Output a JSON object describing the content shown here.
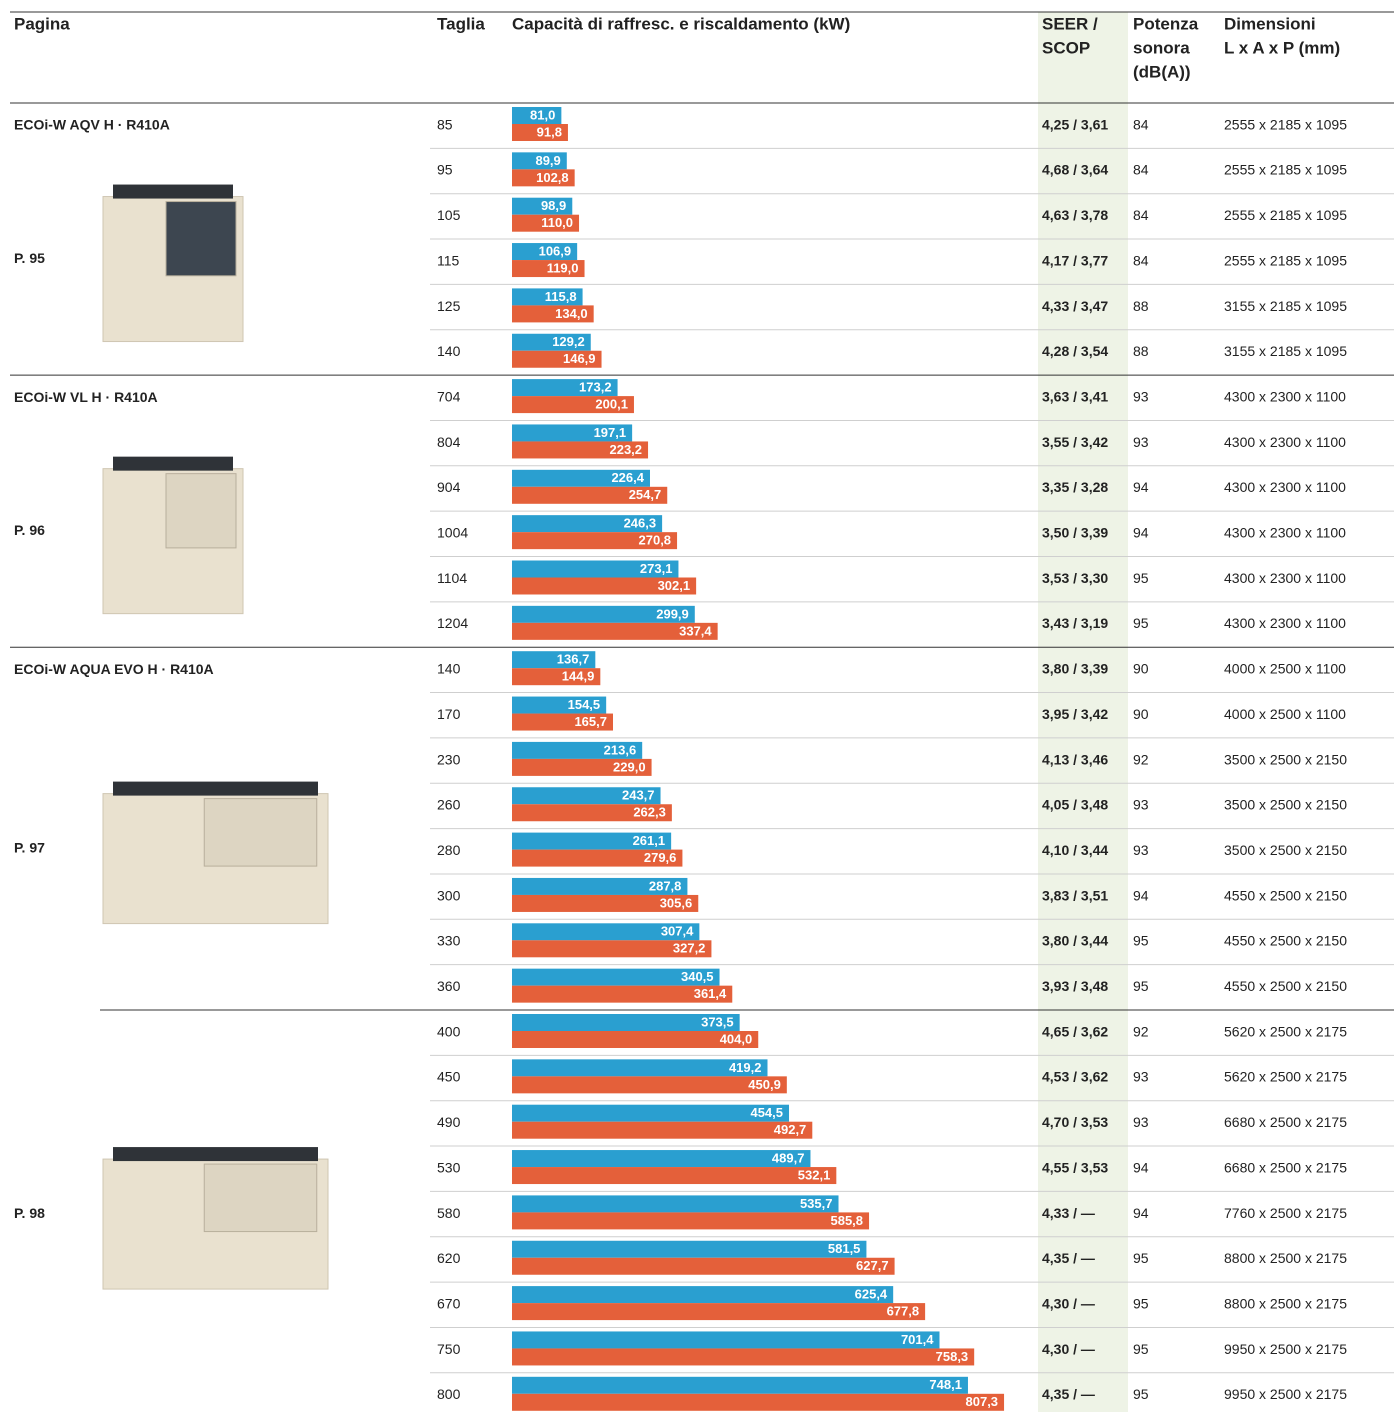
{
  "header": {
    "page": "Pagina",
    "size": "Taglia",
    "capacity": "Capacità di raffresc. e riscaldamento (kW)",
    "efficiency": [
      "SEER /",
      "SCOP"
    ],
    "noise": [
      "Potenza",
      "sonora",
      "(dB(A))"
    ],
    "dimensions": [
      "Dimensioni",
      "L x A x P (mm)"
    ]
  },
  "groups": [
    {
      "name": "ECOi-W AQV H · R410A",
      "page": "P. 95",
      "sizes": [
        85,
        95,
        105,
        115,
        125,
        140
      ],
      "cooling": [
        81.0,
        89.9,
        98.9,
        106.9,
        115.8,
        129.2
      ],
      "cooling_labels": [
        "81,0",
        "89,9",
        "98,9",
        "106,9",
        "115,8",
        "129,2"
      ],
      "heating": [
        91.8,
        102.8,
        110.0,
        119.0,
        134.0,
        146.9
      ],
      "heating_labels": [
        "91,8",
        "102,8",
        "110,0",
        "119,0",
        "134,0",
        "146,9"
      ],
      "seer_scop": [
        "4,25 / 3,61",
        "4,68 / 3,64",
        "4,63 / 3,78",
        "4,17 / 3,77",
        "4,33 / 3,47",
        "4,28 / 3,54"
      ],
      "noise": [
        84,
        84,
        84,
        84,
        88,
        88
      ],
      "dimensions": [
        "2555 x 2185 x 1095",
        "2555 x 2185 x 1095",
        "2555 x 2185 x 1095",
        "2555 x 2185 x 1095",
        "3155 x 2185 x 1095",
        "3155 x 2185 x 1095"
      ]
    },
    {
      "name": "ECOi-W VL H · R410A",
      "page": "P. 96",
      "sizes": [
        704,
        804,
        904,
        1004,
        1104,
        1204
      ],
      "cooling": [
        173.2,
        197.1,
        226.4,
        246.3,
        273.1,
        299.9
      ],
      "cooling_labels": [
        "173,2",
        "197,1",
        "226,4",
        "246,3",
        "273,1",
        "299,9"
      ],
      "heating": [
        200.1,
        223.2,
        254.7,
        270.8,
        302.1,
        337.4
      ],
      "heating_labels": [
        "200,1",
        "223,2",
        "254,7",
        "270,8",
        "302,1",
        "337,4"
      ],
      "seer_scop": [
        "3,63 / 3,41",
        "3,55 / 3,42",
        "3,35 / 3,28",
        "3,50 / 3,39",
        "3,53 / 3,30",
        "3,43 / 3,19"
      ],
      "noise": [
        93,
        93,
        94,
        94,
        95,
        95
      ],
      "dimensions": [
        "4300 x 2300 x 1100",
        "4300 x 2300 x 1100",
        "4300 x 2300 x 1100",
        "4300 x 2300 x 1100",
        "4300 x 2300 x 1100",
        "4300 x 2300 x 1100"
      ]
    },
    {
      "name": "ECOi-W AQUA EVO H · R410A",
      "page": "P. 97",
      "sizes": [
        140,
        170,
        230,
        260,
        280,
        300,
        330,
        360
      ],
      "cooling": [
        136.7,
        154.5,
        213.6,
        243.7,
        261.1,
        287.8,
        307.4,
        340.5
      ],
      "cooling_labels": [
        "136,7",
        "154,5",
        "213,6",
        "243,7",
        "261,1",
        "287,8",
        "307,4",
        "340,5"
      ],
      "heating": [
        144.9,
        165.7,
        229.0,
        262.3,
        279.6,
        305.6,
        327.2,
        361.4
      ],
      "heating_labels": [
        "144,9",
        "165,7",
        "229,0",
        "262,3",
        "279,6",
        "305,6",
        "327,2",
        "361,4"
      ],
      "seer_scop": [
        "3,80 / 3,39",
        "3,95 / 3,42",
        "4,13 / 3,46",
        "4,05 / 3,48",
        "4,10 / 3,44",
        "3,83 / 3,51",
        "3,80 / 3,44",
        "3,93 / 3,48"
      ],
      "noise": [
        90,
        90,
        92,
        93,
        93,
        94,
        95,
        95
      ],
      "dimensions": [
        "4000 x 2500 x 1100",
        "4000 x 2500 x 1100",
        "3500 x 2500 x 2150",
        "3500 x 2500 x 2150",
        "3500 x 2500 x 2150",
        "4550 x 2500 x 2150",
        "4550 x 2500 x 2150",
        "4550 x 2500 x 2150"
      ]
    },
    {
      "page": "P. 98",
      "sizes": [
        400,
        450,
        490,
        530,
        580,
        620,
        670,
        750,
        800
      ],
      "cooling": [
        373.5,
        419.2,
        454.5,
        489.7,
        535.7,
        581.5,
        625.4,
        701.4,
        748.1
      ],
      "cooling_labels": [
        "373,5",
        "419,2",
        "454,5",
        "489,7",
        "535,7",
        "581,5",
        "625,4",
        "701,4",
        "748,1"
      ],
      "heating": [
        404.0,
        450.9,
        492.7,
        532.1,
        585.8,
        627.7,
        677.8,
        758.3,
        807.3
      ],
      "heating_labels": [
        "404,0",
        "450,9",
        "492,7",
        "532,1",
        "585,8",
        "627,7",
        "677,8",
        "758,3",
        "807,3"
      ],
      "seer_scop": [
        "4,65 / 3,62",
        "4,53 / 3,62",
        "4,70 / 3,53",
        "4,55 / 3,53",
        "4,33 / —",
        "4,35 / —",
        "4,30 / —",
        "4,30 / —",
        "4,35 / —"
      ],
      "noise": [
        92,
        93,
        93,
        94,
        94,
        95,
        95,
        95,
        95
      ],
      "dimensions": [
        "5620 x 2500 x 2175",
        "5620 x 2500 x 2175",
        "6680 x 2500 x 2175",
        "6680 x 2500 x 2175",
        "7760 x 2500 x 2175",
        "8800 x 2500 x 2175",
        "8800 x 2500 x 2175",
        "9950 x 2500 x 2175",
        "9950 x 2500 x 2175"
      ]
    }
  ]
}
